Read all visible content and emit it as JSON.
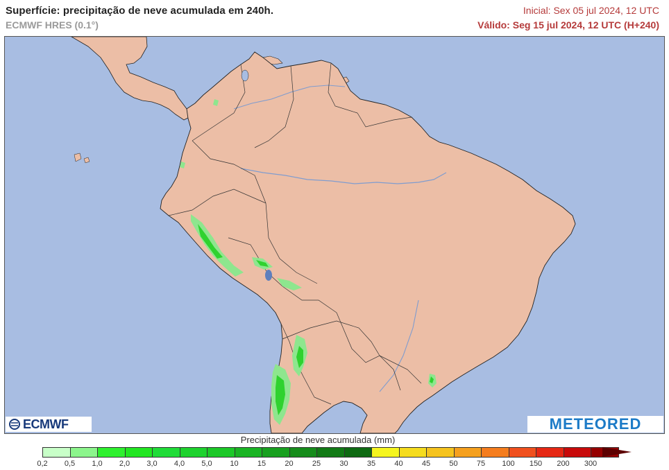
{
  "header": {
    "title": "Superfície: precipitação de neve acumulada em 240h.",
    "model": "ECMWF HRES (0.1°)",
    "initial": "Inicial: Sex 05 jul 2024, 12 UTC",
    "valid": "Válido: Seg 15 jul 2024, 12 UTC (H+240)"
  },
  "map": {
    "ocean_color": "#a8bde2",
    "land_color": "#ecbea6",
    "snow_light_color": "#8ee68e",
    "snow_color": "#2fd22f"
  },
  "logos": {
    "left": "ECMWF",
    "right": "METEORED"
  },
  "legend": {
    "title": "Precipitação de neve acumulada (mm)",
    "labels": [
      "0,2",
      "0,5",
      "1,0",
      "2,0",
      "3,0",
      "4,0",
      "5,0",
      "10",
      "15",
      "20",
      "25",
      "30",
      "35",
      "40",
      "45",
      "50",
      "75",
      "100",
      "150",
      "200",
      "300"
    ],
    "colors": [
      "#c8ffc8",
      "#8cf58c",
      "#2ff02f",
      "#22e622",
      "#20dc38",
      "#1ed22e",
      "#1cc828",
      "#1ab424",
      "#18a01f",
      "#168c1b",
      "#127a16",
      "#0e6a12",
      "#f5f51e",
      "#f5dc1e",
      "#f5c31e",
      "#f5a01e",
      "#f57d1e",
      "#f0501e",
      "#e62814",
      "#c80a0a",
      "#960000"
    ]
  }
}
